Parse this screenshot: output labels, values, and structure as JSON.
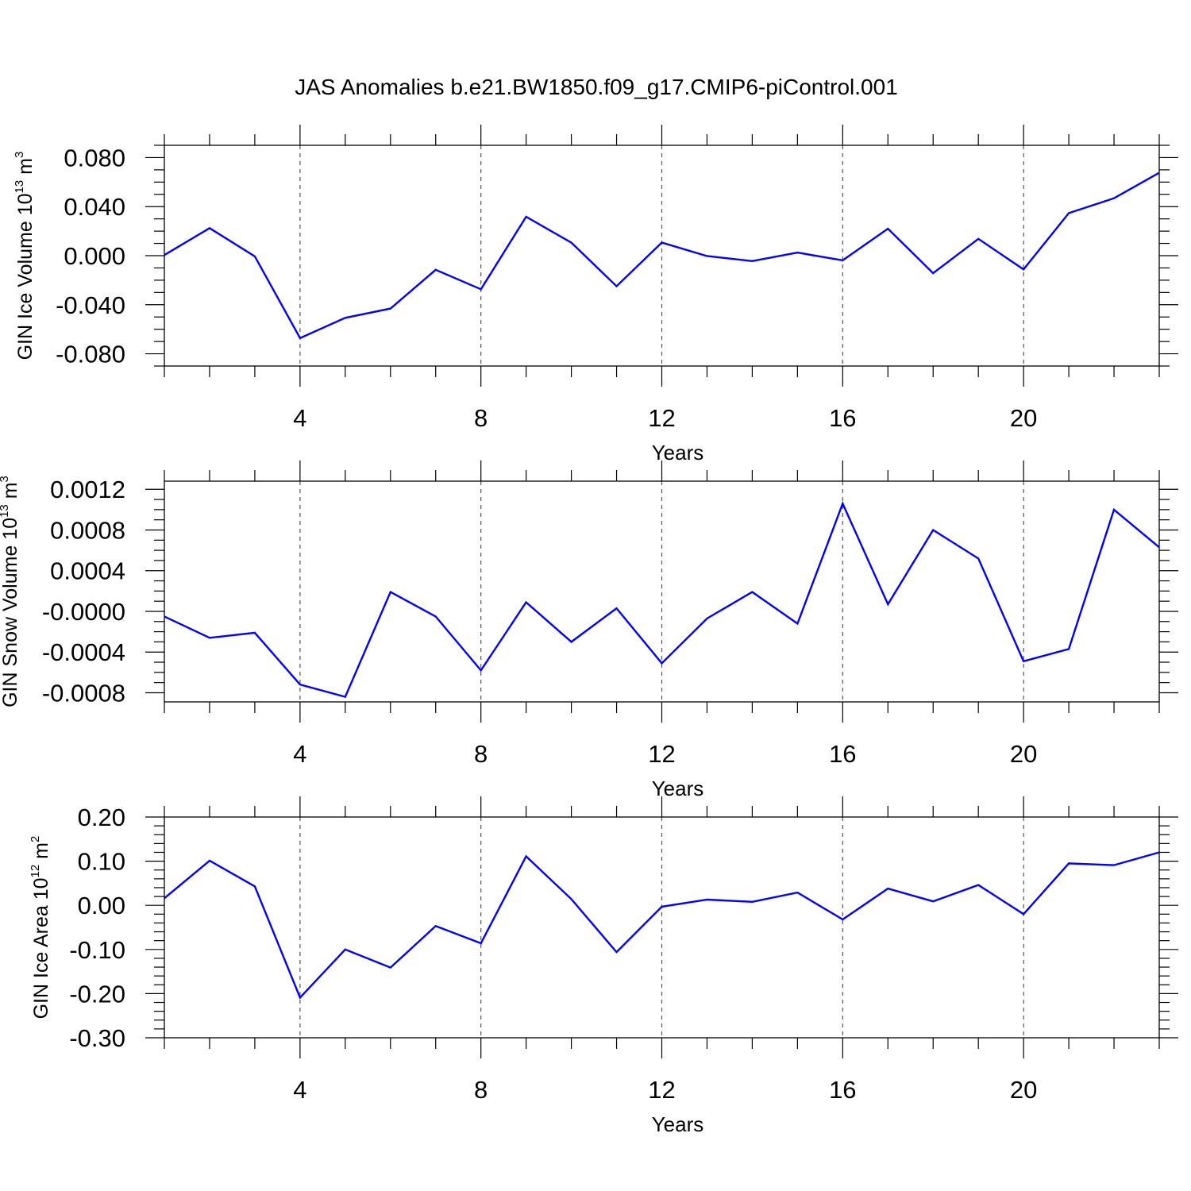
{
  "figure_title": "JAS Anomalies b.e21.BW1850.f09_g17.CMIP6-piControl.001",
  "colors": {
    "line": "#0000ff",
    "axes": "#000000",
    "grid": "#555555"
  },
  "chart_data": [
    {
      "type": "line",
      "xlabel": "Years",
      "ylabel": {
        "text": "GIN Ice Volume 10",
        "exponent": "13",
        "unit": " m",
        "unit_exponent": "3"
      },
      "xlim": [
        1,
        23
      ],
      "ylim": [
        -0.09,
        0.09
      ],
      "x_ticks": [
        4,
        8,
        12,
        16,
        20
      ],
      "x_tick_labels": [
        "4",
        "8",
        "12",
        "16",
        "20"
      ],
      "y_ticks": [
        -0.08,
        -0.04,
        0.0,
        0.04,
        0.08
      ],
      "y_tick_labels": [
        "-0.080",
        "-0.040",
        "0.000",
        "0.040",
        "0.080"
      ],
      "x_minor_step": 1,
      "y_minor_step": 0.01,
      "grid": "vertical dashed at major x ticks",
      "x": [
        1,
        2,
        3,
        4,
        5,
        6,
        7,
        8,
        9,
        10,
        11,
        12,
        13,
        14,
        15,
        16,
        17,
        18,
        19,
        20,
        21,
        22,
        23
      ],
      "series": [
        {
          "values": [
            0.0005,
            0.0225,
            -0.0005,
            -0.0672,
            -0.0507,
            -0.0431,
            -0.0115,
            -0.0274,
            0.0317,
            0.0106,
            -0.0249,
            0.0107,
            -0.0003,
            -0.0044,
            0.0025,
            -0.0038,
            0.022,
            -0.0143,
            0.0137,
            -0.0112,
            0.0347,
            0.0468,
            0.0676
          ]
        }
      ]
    },
    {
      "type": "line",
      "xlabel": "Years",
      "ylabel": {
        "text": "GIN Snow Volume 10",
        "exponent": "13",
        "unit": " m",
        "unit_exponent": "3"
      },
      "xlim": [
        1,
        23
      ],
      "ylim": [
        -0.00089,
        0.00128
      ],
      "x_ticks": [
        4,
        8,
        12,
        16,
        20
      ],
      "x_tick_labels": [
        "4",
        "8",
        "12",
        "16",
        "20"
      ],
      "y_ticks": [
        -0.0008,
        -0.0004,
        0.0,
        0.0004,
        0.0008,
        0.0012
      ],
      "y_tick_labels": [
        "-0.0008",
        "-0.0004",
        "-0.0000",
        "0.0004",
        "0.0008",
        "0.0012"
      ],
      "x_minor_step": 1,
      "y_minor_step": 0.0001,
      "grid": "vertical dashed at major x ticks",
      "x": [
        1,
        2,
        3,
        4,
        5,
        6,
        7,
        8,
        9,
        10,
        11,
        12,
        13,
        14,
        15,
        16,
        17,
        18,
        19,
        20,
        21,
        22,
        23
      ],
      "series": [
        {
          "values": [
            -5e-05,
            -0.00026,
            -0.00021,
            -0.00072,
            -0.00084,
            0.00019,
            -5e-05,
            -0.00058,
            9e-05,
            -0.0003,
            3e-05,
            -0.00051,
            -7e-05,
            0.00019,
            -0.00012,
            0.00106,
            7e-05,
            0.0008,
            0.00052,
            -0.00049,
            -0.00037,
            0.001,
            0.00063
          ]
        }
      ]
    },
    {
      "type": "line",
      "xlabel": "Years",
      "ylabel": {
        "text": "GIN Ice Area 10",
        "exponent": "12",
        "unit": " m",
        "unit_exponent": "2"
      },
      "xlim": [
        1,
        23
      ],
      "ylim": [
        -0.3,
        0.2
      ],
      "x_ticks": [
        4,
        8,
        12,
        16,
        20
      ],
      "x_tick_labels": [
        "4",
        "8",
        "12",
        "16",
        "20"
      ],
      "y_ticks": [
        -0.3,
        -0.2,
        -0.1,
        0.0,
        0.1,
        0.2
      ],
      "y_tick_labels": [
        "-0.30",
        "-0.20",
        "-0.10",
        "0.00",
        "0.10",
        "0.20"
      ],
      "x_minor_step": 1,
      "y_minor_step": 0.02,
      "grid": "vertical dashed at major x ticks",
      "x": [
        1,
        2,
        3,
        4,
        5,
        6,
        7,
        8,
        9,
        10,
        11,
        12,
        13,
        14,
        15,
        16,
        17,
        18,
        19,
        20,
        21,
        22,
        23
      ],
      "series": [
        {
          "values": [
            0.016,
            0.101,
            0.043,
            -0.209,
            -0.1,
            -0.141,
            -0.047,
            -0.086,
            0.111,
            0.014,
            -0.106,
            -0.003,
            0.013,
            0.008,
            0.029,
            -0.032,
            0.038,
            0.009,
            0.046,
            -0.02,
            0.095,
            0.091,
            0.12
          ]
        }
      ]
    }
  ]
}
